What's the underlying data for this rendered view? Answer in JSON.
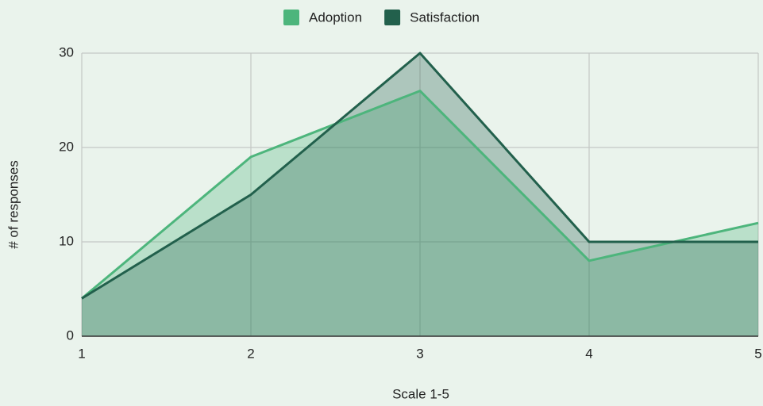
{
  "chart_data": {
    "type": "area",
    "x": [
      1,
      2,
      3,
      4,
      5
    ],
    "series": [
      {
        "name": "Adoption",
        "color": "#4db57c",
        "values": [
          4,
          19,
          26,
          8,
          12
        ]
      },
      {
        "name": "Satisfaction",
        "color": "#22604c",
        "values": [
          4,
          15,
          30,
          10,
          10
        ]
      }
    ],
    "xlim": [
      1,
      5
    ],
    "xticks": [
      1,
      2,
      3,
      4,
      5
    ],
    "ylim": [
      0,
      30
    ],
    "yticks": [
      0,
      10,
      20,
      30
    ],
    "x_label": "Scale 1-5",
    "y_label": "# of responses",
    "grid": true,
    "legend": "top"
  }
}
